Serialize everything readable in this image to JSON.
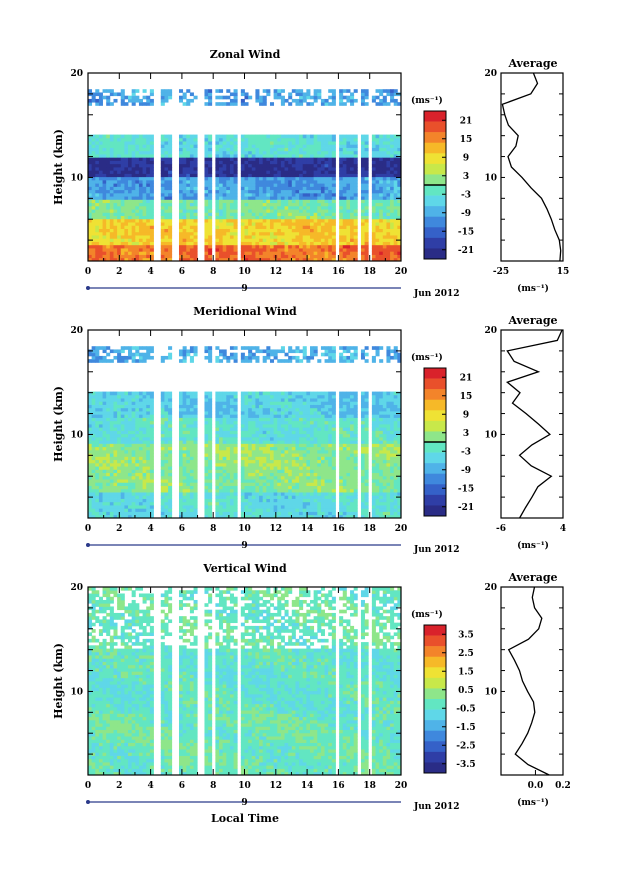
{
  "figure": {
    "x_axis_label": "Local Time",
    "date_label": "Jun 2012",
    "day_label": "9",
    "y_axis_label": "Height (km)",
    "profile_unit": "(ms⁻¹)",
    "colorbar_unit": "(ms⁻¹)"
  },
  "chart_data": [
    {
      "type": "heatmap",
      "title": "Zonal Wind",
      "ylabel": "Height (km)",
      "xlabel": "Local Time",
      "xlim": [
        0,
        20
      ],
      "ylim": [
        2,
        20
      ],
      "x_ticks": [
        "0",
        "2",
        "4",
        "6",
        "8",
        "10",
        "12",
        "14",
        "16",
        "18",
        "20"
      ],
      "y_ticks": [
        "10",
        "20"
      ],
      "colorbar": {
        "range": [
          -24,
          24
        ],
        "ticks": [
          "21",
          "15",
          "9",
          "3",
          "-3",
          "-9",
          "-15",
          "-21"
        ],
        "zero_line": true
      },
      "height_bands": [
        {
          "from_km": 2.0,
          "to_km": 3.5,
          "value": 17
        },
        {
          "from_km": 3.5,
          "to_km": 6.0,
          "value": 10
        },
        {
          "from_km": 6.0,
          "to_km": 8.0,
          "value": 0
        },
        {
          "from_km": 8.0,
          "to_km": 10.0,
          "value": -10
        },
        {
          "from_km": 10.0,
          "to_km": 12.0,
          "value": -21
        },
        {
          "from_km": 12.0,
          "to_km": 14.0,
          "value": -4
        },
        {
          "from_km": 17.0,
          "to_km": 18.5,
          "value": -10
        }
      ],
      "average_profile": {
        "title": "Average",
        "xlim": [
          -25,
          15
        ],
        "x_ticks": [
          "-25",
          "15"
        ],
        "y_ticks": [
          "10",
          "20"
        ],
        "points": [
          [
            13,
            2
          ],
          [
            14,
            3
          ],
          [
            12,
            4
          ],
          [
            10,
            5
          ],
          [
            7,
            6
          ],
          [
            4,
            7
          ],
          [
            1,
            8
          ],
          [
            -5,
            9
          ],
          [
            -12,
            10
          ],
          [
            -18,
            11
          ],
          [
            -20,
            12
          ],
          [
            -16,
            13
          ],
          [
            -14,
            14
          ],
          [
            -20,
            15
          ],
          [
            -22,
            16
          ],
          [
            -24,
            17
          ],
          [
            -6,
            18
          ],
          [
            -2,
            19
          ],
          [
            -4,
            20
          ]
        ]
      }
    },
    {
      "type": "heatmap",
      "title": "Meridional Wind",
      "ylabel": "Height (km)",
      "xlabel": "Local Time",
      "xlim": [
        0,
        20
      ],
      "ylim": [
        2,
        20
      ],
      "x_ticks": [
        "0",
        "2",
        "4",
        "6",
        "8",
        "10",
        "12",
        "14",
        "16",
        "18",
        "20"
      ],
      "y_ticks": [
        "10",
        "20"
      ],
      "colorbar": {
        "range": [
          -24,
          24
        ],
        "ticks": [
          "21",
          "15",
          "9",
          "3",
          "-3",
          "-9",
          "-15",
          "-21"
        ],
        "zero_line": true
      },
      "height_bands": [
        {
          "from_km": 2.0,
          "to_km": 4.5,
          "value": -4
        },
        {
          "from_km": 4.5,
          "to_km": 7.0,
          "value": 1
        },
        {
          "from_km": 7.0,
          "to_km": 9.0,
          "value": 2
        },
        {
          "from_km": 9.0,
          "to_km": 11.5,
          "value": -3
        },
        {
          "from_km": 11.5,
          "to_km": 14.0,
          "value": -6
        },
        {
          "from_km": 17.0,
          "to_km": 18.5,
          "value": -9
        }
      ],
      "average_profile": {
        "title": "Average",
        "xlim": [
          -6,
          4
        ],
        "x_ticks": [
          "-6",
          "4"
        ],
        "y_ticks": [
          "10",
          "20"
        ],
        "points": [
          [
            -3,
            2
          ],
          [
            -2,
            3
          ],
          [
            -1,
            4
          ],
          [
            0,
            5
          ],
          [
            2,
            6
          ],
          [
            -1,
            7
          ],
          [
            -3,
            8
          ],
          [
            -1,
            9
          ],
          [
            2,
            10
          ],
          [
            0,
            11
          ],
          [
            -2,
            12
          ],
          [
            -4,
            13
          ],
          [
            -3,
            14
          ],
          [
            -5,
            15
          ],
          [
            0,
            16
          ],
          [
            -4,
            17
          ],
          [
            -5,
            18
          ],
          [
            3,
            19
          ],
          [
            4,
            20
          ]
        ]
      }
    },
    {
      "type": "heatmap",
      "title": "Vertical Wind",
      "ylabel": "Height (km)",
      "xlabel": "Local Time",
      "xlim": [
        0,
        20
      ],
      "ylim": [
        2,
        20
      ],
      "x_ticks": [
        "0",
        "2",
        "4",
        "6",
        "8",
        "10",
        "12",
        "14",
        "16",
        "18",
        "20"
      ],
      "y_ticks": [
        "10",
        "20"
      ],
      "colorbar": {
        "range": [
          -4,
          4
        ],
        "ticks": [
          "3.5",
          "2.5",
          "1.5",
          "0.5",
          "-0.5",
          "-1.5",
          "-2.5",
          "-3.5"
        ],
        "zero_line": false
      },
      "height_bands": [
        {
          "from_km": 2.0,
          "to_km": 8.0,
          "value": -0.2
        },
        {
          "from_km": 8.0,
          "to_km": 14.0,
          "value": -0.4
        },
        {
          "from_km": 14.0,
          "to_km": 20.0,
          "value": -0.2
        }
      ],
      "average_profile": {
        "title": "Average",
        "xlim": [
          -0.25,
          0.2
        ],
        "x_ticks": [
          "0.0",
          "0.2"
        ],
        "y_ticks": [
          "10",
          "20"
        ],
        "points": [
          [
            0.1,
            2
          ],
          [
            -0.05,
            3
          ],
          [
            -0.15,
            4
          ],
          [
            -0.1,
            5
          ],
          [
            -0.05,
            6
          ],
          [
            -0.03,
            7
          ],
          [
            0.0,
            8
          ],
          [
            -0.02,
            9
          ],
          [
            -0.05,
            10
          ],
          [
            -0.1,
            11
          ],
          [
            -0.12,
            12
          ],
          [
            -0.15,
            13
          ],
          [
            -0.2,
            14
          ],
          [
            -0.05,
            15
          ],
          [
            0.02,
            16
          ],
          [
            0.05,
            17
          ],
          [
            0.0,
            18
          ],
          [
            -0.02,
            19
          ],
          [
            0.0,
            20
          ]
        ]
      }
    }
  ],
  "colors": {
    "palette": [
      "#2a2c86",
      "#2f3ea6",
      "#3561c8",
      "#3f88dd",
      "#4fb3e8",
      "#5fd7e8",
      "#62e6c2",
      "#8ee68a",
      "#c8e84a",
      "#efe234",
      "#f6b928",
      "#f3842a",
      "#e9502b",
      "#d9222b"
    ],
    "contour": "#000000",
    "missing": "#ffffff"
  }
}
